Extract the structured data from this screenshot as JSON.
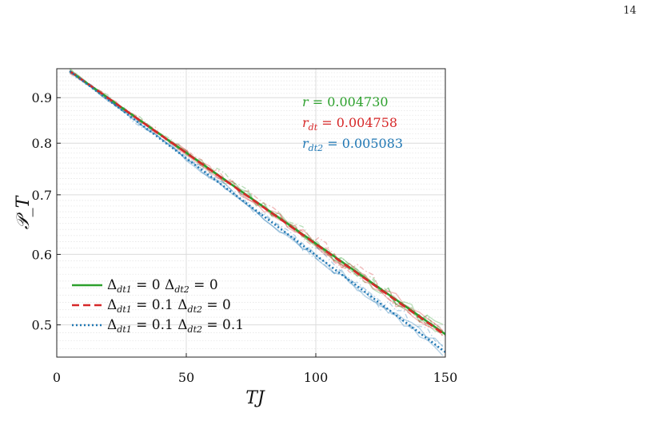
{
  "page_number": "14",
  "chart_data": {
    "type": "line",
    "xlabel": "TJ",
    "ylabel": "𝒫_T",
    "xlim": [
      0,
      150
    ],
    "ylim": [
      0.46,
      0.97
    ],
    "yscale": "log",
    "xticks": [
      0,
      50,
      100,
      150
    ],
    "yticks": [
      0.5,
      0.6,
      0.7,
      0.8,
      0.9
    ],
    "grid": true,
    "legend_position": "bottom-left",
    "x": [
      5,
      150
    ],
    "series": [
      {
        "name": "Δdt1 = 0 Δdt2 = 0",
        "label_parts": [
          "Δ",
          "dt1",
          " = 0 Δ",
          "dt2",
          " = 0"
        ],
        "color": "#2ca02c",
        "linestyle": "solid",
        "values": [
          0.964,
          0.488
        ]
      },
      {
        "name": "Δdt1 = 0.1 Δdt2 = 0",
        "label_parts": [
          "Δ",
          "dt1",
          " = 0.1 Δ",
          "dt2",
          " = 0"
        ],
        "color": "#d62728",
        "linestyle": "dashed",
        "values": [
          0.964,
          0.487
        ]
      },
      {
        "name": "Δdt1 = 0.1 Δdt2 = 0.1",
        "label_parts": [
          "Δ",
          "dt1",
          " = 0.1 Δ",
          "dt2",
          " = 0.1"
        ],
        "color": "#1f77b4",
        "linestyle": "dotted",
        "values": [
          0.964,
          0.466
        ]
      }
    ],
    "annotations": [
      {
        "symbol": "r",
        "sub": "",
        "text": " = 0.004730",
        "color": "#2ca02c"
      },
      {
        "symbol": "r",
        "sub": "dt",
        "text": " = 0.004758",
        "color": "#d62728"
      },
      {
        "symbol": "r",
        "sub": "dt2",
        "text": " = 0.005083",
        "color": "#1f77b4"
      }
    ]
  }
}
